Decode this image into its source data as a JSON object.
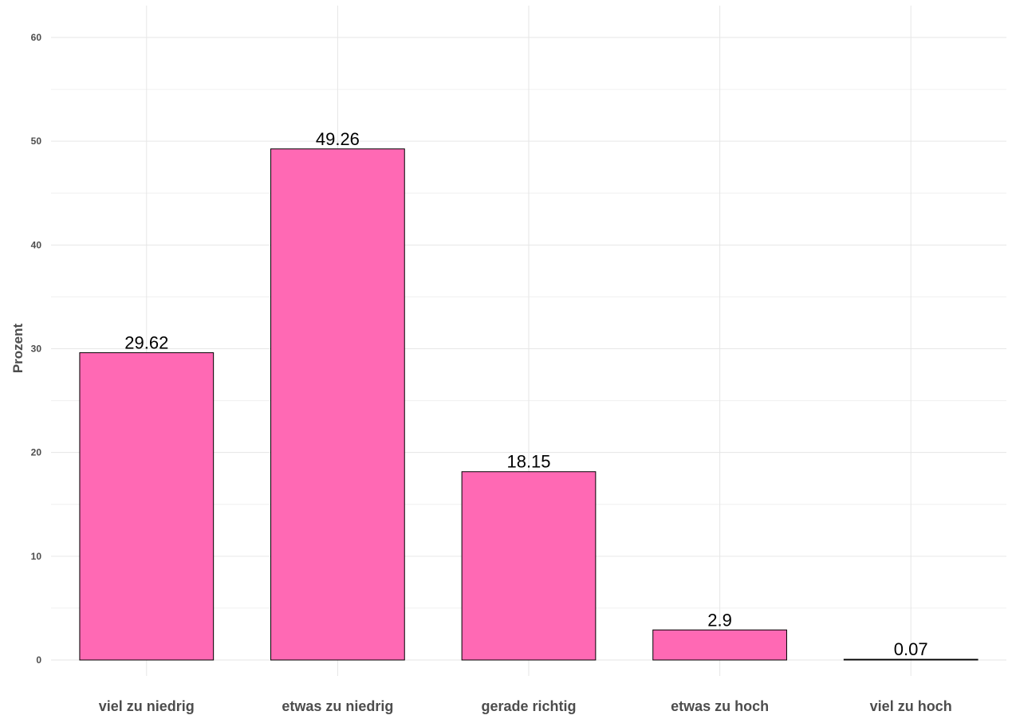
{
  "chart_data": {
    "type": "bar",
    "categories": [
      "viel zu niedrig",
      "etwas zu niedrig",
      "gerade richtig",
      "etwas zu hoch",
      "viel zu hoch"
    ],
    "values": [
      29.62,
      49.26,
      18.15,
      2.9,
      0.07
    ],
    "data_labels": [
      "29.62",
      "49.26",
      "18.15",
      "2.9",
      "0.07"
    ],
    "title": "",
    "xlabel": "",
    "ylabel": "Prozent",
    "ylim": [
      0,
      60
    ],
    "yticks": [
      0,
      10,
      20,
      30,
      40,
      50,
      60
    ],
    "ytick_labels": [
      "0",
      "10",
      "20",
      "30",
      "40",
      "50",
      "60"
    ],
    "grid": true,
    "legend": "none",
    "bar_fill": "#ff69b4",
    "bar_outline": "#000000"
  }
}
